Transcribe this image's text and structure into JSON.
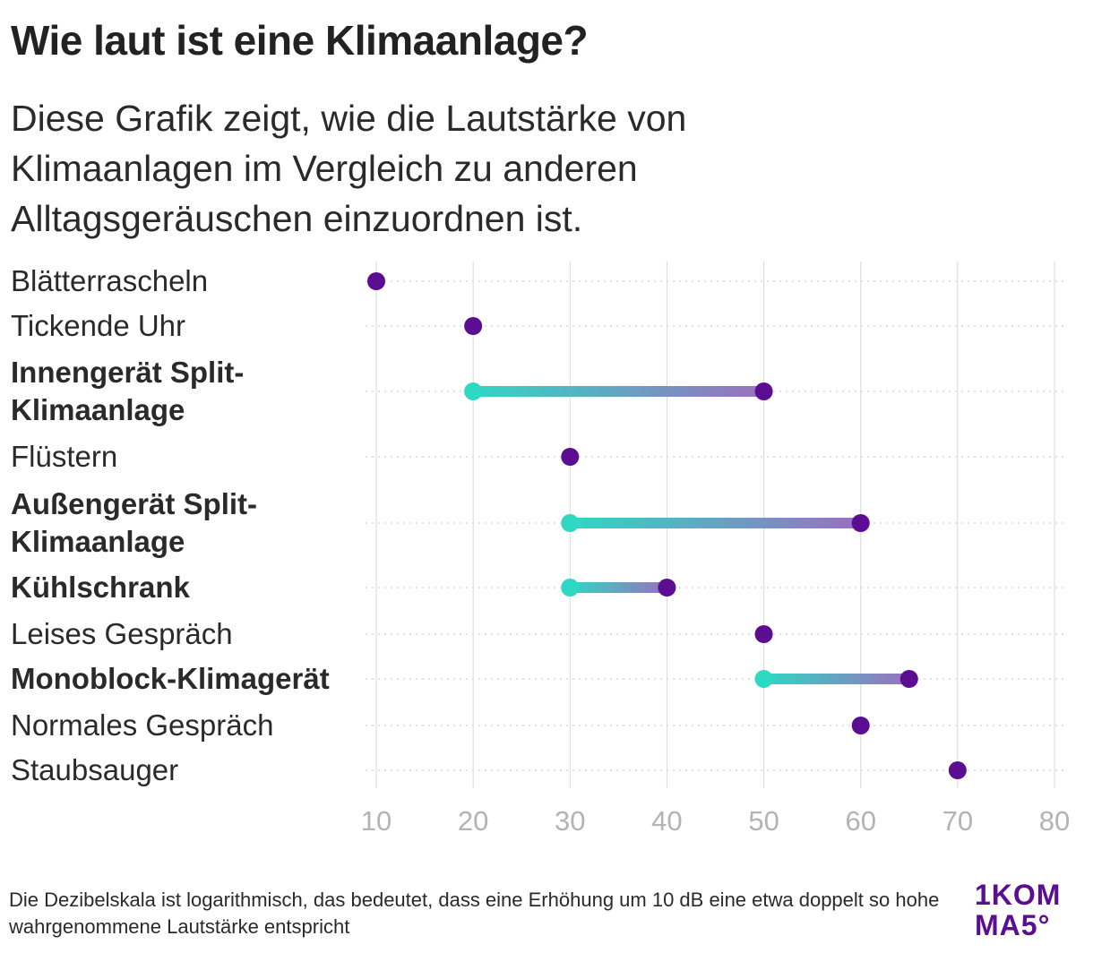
{
  "title": "Wie laut ist eine Klimaanlage?",
  "subtitle": "Diese Grafik zeigt, wie die Lautstärke von Klimaanlagen im Vergleich zu anderen Alltagsgeräuschen einzuordnen ist.",
  "footnote": "Die Dezibelskala ist logarithmisch, das bedeutet, dass eine Erhöhung um 10 dB eine etwa doppelt so hohe wahrgenommene Lautstärke entspricht",
  "logo": {
    "line1": "1KOM",
    "line2": "MA5°"
  },
  "colors": {
    "point": "#5b0e91",
    "range_start": "#2ed8c3",
    "range_end": "#9b6fc0",
    "grid": "#d9d9d9",
    "tick": "#b3b3b3",
    "logo": "#5b0e91"
  },
  "chart_data": {
    "type": "dumbbell",
    "title": "Wie laut ist eine Klimaanlage?",
    "xlabel": "",
    "unit": "dB",
    "xlim": [
      10,
      80
    ],
    "xticks": [
      "10",
      "20",
      "30",
      "40",
      "50",
      "60",
      "70",
      "80"
    ],
    "rows": [
      {
        "label": "Blätterrascheln",
        "highlight": false,
        "min": 10,
        "max": 10
      },
      {
        "label": "Tickende Uhr",
        "highlight": false,
        "min": 20,
        "max": 20
      },
      {
        "label": "Innengerät Split-Klimaanlage",
        "label_lines": [
          "Innengerät Split-",
          "Klimaanlage"
        ],
        "highlight": true,
        "min": 20,
        "max": 50
      },
      {
        "label": "Flüstern",
        "highlight": false,
        "min": 30,
        "max": 30
      },
      {
        "label": "Außengerät Split-Klimaanlage",
        "label_lines": [
          "Außengerät Split-",
          "Klimaanlage"
        ],
        "highlight": true,
        "min": 30,
        "max": 60
      },
      {
        "label": "Kühlschrank",
        "highlight": true,
        "min": 30,
        "max": 40
      },
      {
        "label": "Leises Gespräch",
        "highlight": false,
        "min": 50,
        "max": 50
      },
      {
        "label": "Monoblock-Klimagerät",
        "highlight": true,
        "min": 50,
        "max": 65
      },
      {
        "label": "Normales Gespräch",
        "highlight": false,
        "min": 60,
        "max": 60
      },
      {
        "label": "Staubsauger",
        "highlight": false,
        "min": 70,
        "max": 70
      }
    ]
  }
}
